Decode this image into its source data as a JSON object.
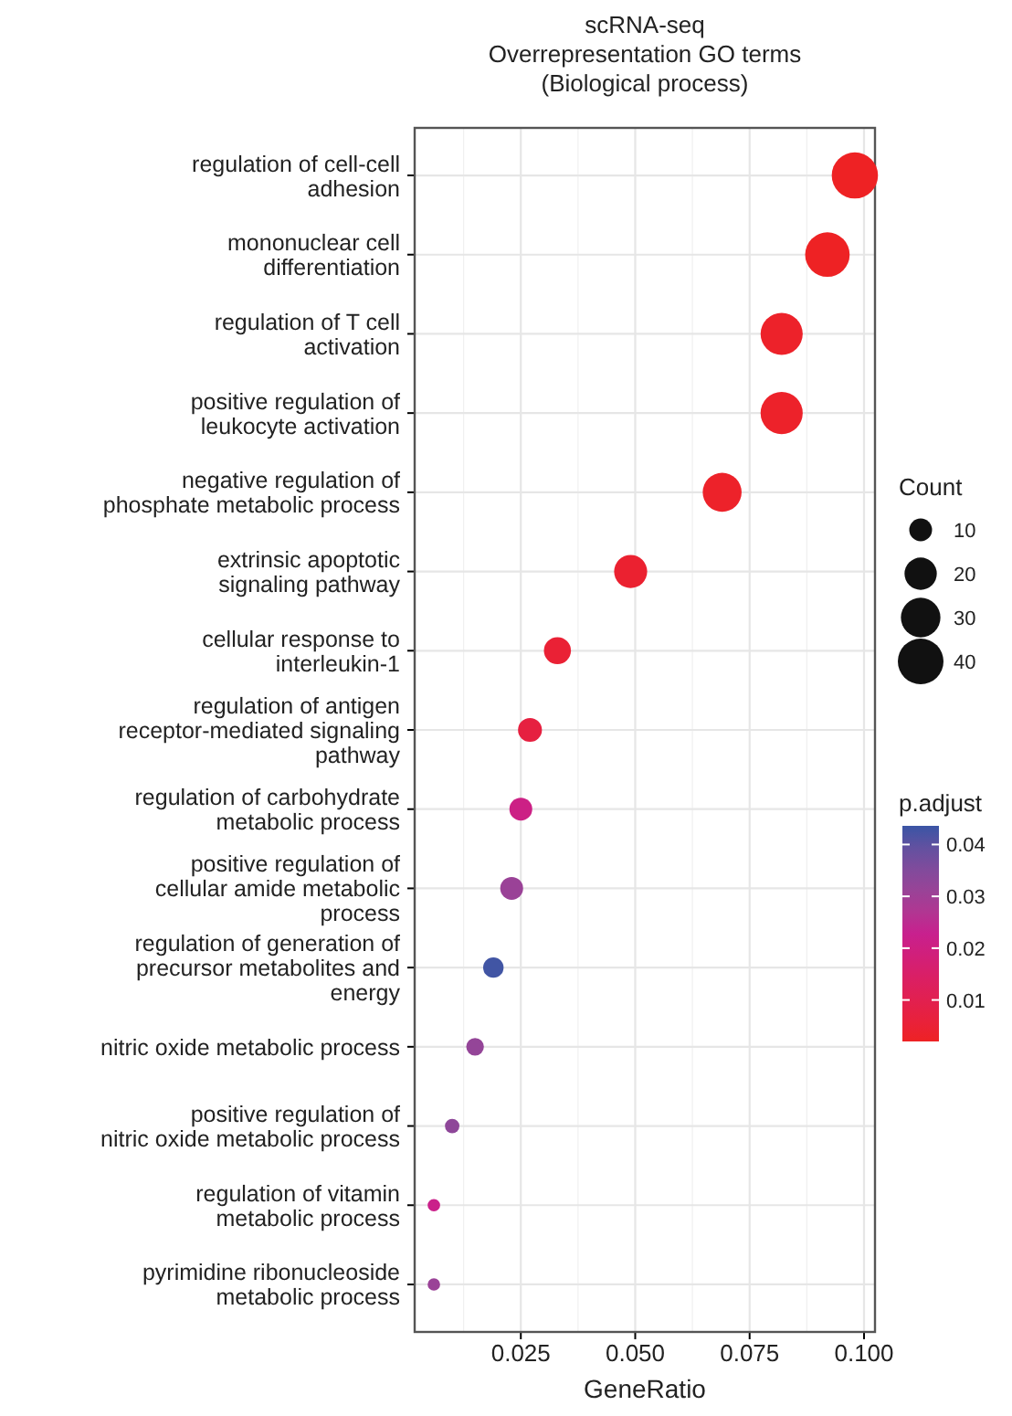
{
  "chart_data": {
    "type": "bubble",
    "orientation": "horizontal",
    "title": "scRNA-seq\nOverrepresentation GO terms\n(Biological process)",
    "xlabel": "GeneRatio",
    "legend_title": "Count",
    "clabel": "p.adjust",
    "categories": [
      "regulation of cell-cell\nadhesion",
      "mononuclear cell\ndifferentiation",
      "regulation of T cell\nactivation",
      "positive regulation of\nleukocyte activation",
      "negative regulation of\nphosphate metabolic process",
      "extrinsic apoptotic\nsignaling pathway",
      "cellular response to\ninterleukin-1",
      "regulation of antigen\nreceptor-mediated signaling\npathway",
      "regulation of carbohydrate\nmetabolic process",
      "positive regulation of\ncellular amide metabolic\nprocess",
      "regulation of generation of\nprecursor metabolites and\nenergy",
      "nitric oxide metabolic process",
      "positive regulation of\nnitric oxide metabolic process",
      "regulation of vitamin\nmetabolic process",
      "pyrimidine ribonucleoside\nmetabolic process"
    ],
    "values": [
      0.098,
      0.092,
      0.082,
      0.082,
      0.069,
      0.049,
      0.033,
      0.027,
      0.025,
      0.023,
      0.019,
      0.015,
      0.01,
      0.006,
      0.006
    ],
    "sizes": [
      41,
      38,
      34,
      34,
      29,
      21,
      14,
      11,
      10,
      10,
      8,
      6,
      4,
      3,
      3
    ],
    "size_legend": [
      10,
      20,
      30,
      40
    ],
    "cvalues": [
      0.002,
      0.002,
      0.003,
      0.003,
      0.003,
      0.004,
      0.005,
      0.007,
      0.021,
      0.031,
      0.043,
      0.032,
      0.033,
      0.022,
      0.031
    ],
    "clim": [
      0.002,
      0.0436
    ],
    "cticks": [
      0.01,
      0.02,
      0.03,
      0.04
    ],
    "xlim": [
      0.0018,
      0.1024
    ],
    "xticks": [
      0.025,
      {
        "value": 0.05,
        "label": "0.050"
      },
      {
        "value": 0.075,
        "label": "0.075"
      },
      {
        "value": 0.1,
        "label": "0.100"
      }
    ],
    "grid": true
  }
}
